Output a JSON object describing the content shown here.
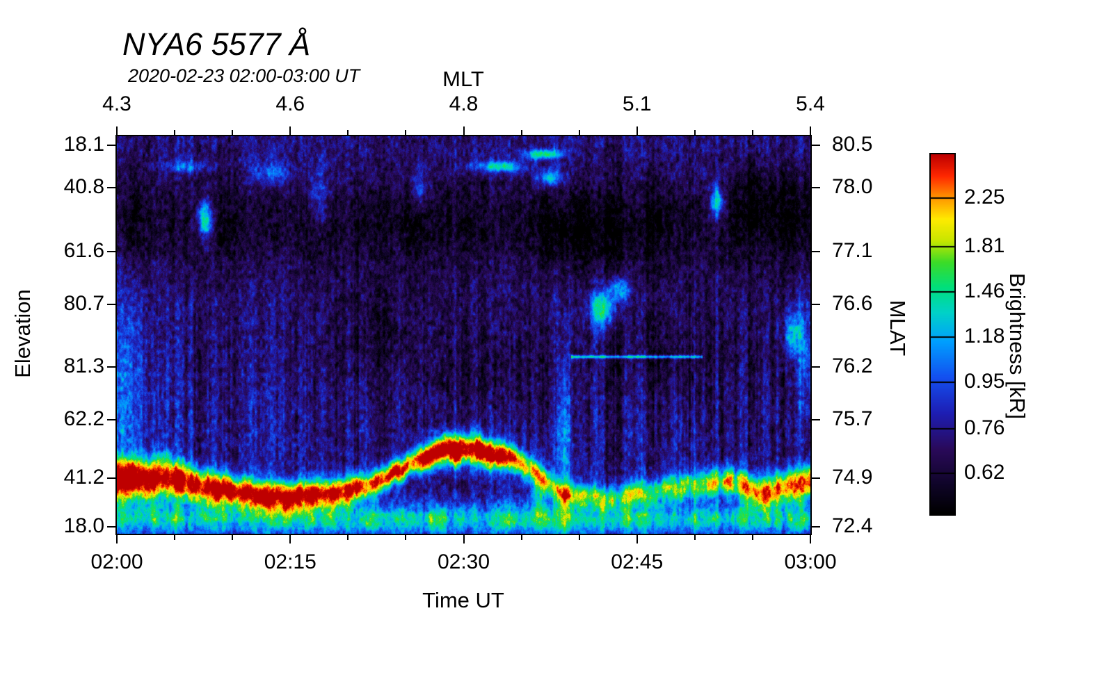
{
  "chart_data": {
    "type": "heatmap",
    "title": "NYA6 5577 Å",
    "subtitle": "2020-02-23 02:00-03:00 UT",
    "bottom_axis": {
      "label": "Time UT",
      "ticks": [
        {
          "label": "02:00",
          "pos": 0.0
        },
        {
          "label": "02:15",
          "pos": 0.25
        },
        {
          "label": "02:30",
          "pos": 0.5
        },
        {
          "label": "02:45",
          "pos": 0.75
        },
        {
          "label": "03:00",
          "pos": 1.0
        }
      ]
    },
    "top_axis": {
      "label": "MLT",
      "ticks": [
        {
          "label": "4.3",
          "pos": 0.0
        },
        {
          "label": "4.6",
          "pos": 0.25
        },
        {
          "label": "4.8",
          "pos": 0.5
        },
        {
          "label": "5.1",
          "pos": 0.75
        },
        {
          "label": "5.4",
          "pos": 1.0
        }
      ]
    },
    "left_axis": {
      "label": "Elevation",
      "ticks": [
        {
          "label": "18.1",
          "pos": 0.023
        },
        {
          "label": "40.8",
          "pos": 0.129
        },
        {
          "label": "61.6",
          "pos": 0.29
        },
        {
          "label": "80.7",
          "pos": 0.423
        },
        {
          "label": "81.3",
          "pos": 0.58
        },
        {
          "label": "62.2",
          "pos": 0.713
        },
        {
          "label": "41.2",
          "pos": 0.86
        },
        {
          "label": "18.0",
          "pos": 0.982
        }
      ]
    },
    "right_axis": {
      "label": "MLAT",
      "ticks": [
        {
          "label": "80.5",
          "pos": 0.023
        },
        {
          "label": "78.0",
          "pos": 0.129
        },
        {
          "label": "77.1",
          "pos": 0.29
        },
        {
          "label": "76.6",
          "pos": 0.423
        },
        {
          "label": "76.2",
          "pos": 0.58
        },
        {
          "label": "75.7",
          "pos": 0.713
        },
        {
          "label": "74.9",
          "pos": 0.86
        },
        {
          "label": "72.4",
          "pos": 0.982
        }
      ]
    },
    "colorbar": {
      "label": "Brightness [kR]",
      "ticks": [
        {
          "label": "2.25",
          "pos": 0.122
        },
        {
          "label": "1.81",
          "pos": 0.257
        },
        {
          "label": "1.46",
          "pos": 0.382
        },
        {
          "label": "1.18",
          "pos": 0.508
        },
        {
          "label": "0.95",
          "pos": 0.633
        },
        {
          "label": "0.76",
          "pos": 0.762
        },
        {
          "label": "0.62",
          "pos": 0.886
        }
      ],
      "gradient": [
        [
          0.0,
          "#000000"
        ],
        [
          0.08,
          "#0f0528"
        ],
        [
          0.18,
          "#2a0a5a"
        ],
        [
          0.28,
          "#1e1eb4"
        ],
        [
          0.38,
          "#1450f0"
        ],
        [
          0.48,
          "#00a0ff"
        ],
        [
          0.56,
          "#00d2c8"
        ],
        [
          0.63,
          "#00e07d"
        ],
        [
          0.7,
          "#3cdc28"
        ],
        [
          0.76,
          "#c8e600"
        ],
        [
          0.82,
          "#ffeb00"
        ],
        [
          0.88,
          "#ff9600"
        ],
        [
          0.94,
          "#ff2800"
        ],
        [
          1.0,
          "#be0000"
        ]
      ]
    },
    "features": {
      "band": {
        "u": [
          0.0,
          0.06,
          0.12,
          0.18,
          0.24,
          0.3,
          0.36,
          0.42,
          0.47,
          0.52,
          0.57,
          0.6,
          0.64,
          0.7,
          0.76,
          0.82,
          0.88,
          0.94,
          1.0
        ],
        "w": [
          0.862,
          0.862,
          0.878,
          0.896,
          0.91,
          0.9,
          0.88,
          0.83,
          0.79,
          0.79,
          0.808,
          0.84,
          0.9,
          0.91,
          0.9,
          0.88,
          0.87,
          0.898,
          0.872
        ],
        "amp": [
          0.88,
          0.88,
          0.8,
          0.78,
          0.8,
          0.82,
          0.78,
          0.72,
          0.88,
          0.88,
          0.78,
          0.55,
          0.48,
          0.45,
          0.45,
          0.48,
          0.55,
          0.65,
          0.62
        ],
        "sigma": [
          0.05,
          0.052,
          0.042,
          0.038,
          0.036,
          0.036,
          0.032,
          0.03,
          0.036,
          0.038,
          0.032,
          0.03,
          0.03,
          0.03,
          0.032,
          0.034,
          0.036,
          0.04,
          0.042
        ]
      },
      "dark_band": {
        "w": 0.22,
        "sigma": 0.13,
        "amp": 0.15
      },
      "bottom_band": {
        "w": 0.965,
        "sigma": 0.04,
        "amp": 0.36
      },
      "thin_line": {
        "w": 0.555,
        "u0": 0.655,
        "u1": 0.845,
        "amp": 0.42,
        "sigma": 0.004
      },
      "blobs": [
        [
          0.127,
          0.21,
          0.012,
          0.05,
          0.5
        ],
        [
          0.1,
          0.075,
          0.03,
          0.018,
          0.25
        ],
        [
          0.22,
          0.09,
          0.03,
          0.03,
          0.22
        ],
        [
          0.29,
          0.15,
          0.015,
          0.08,
          0.2
        ],
        [
          0.435,
          0.13,
          0.012,
          0.05,
          0.22
        ],
        [
          0.55,
          0.075,
          0.04,
          0.014,
          0.4
        ],
        [
          0.615,
          0.045,
          0.028,
          0.013,
          0.48
        ],
        [
          0.625,
          0.105,
          0.02,
          0.02,
          0.35
        ],
        [
          0.7,
          0.435,
          0.018,
          0.045,
          0.52
        ],
        [
          0.725,
          0.385,
          0.013,
          0.03,
          0.42
        ],
        [
          0.865,
          0.165,
          0.01,
          0.045,
          0.48
        ],
        [
          0.975,
          0.5,
          0.014,
          0.06,
          0.38
        ],
        [
          0.61,
          0.9,
          0.012,
          0.09,
          0.3
        ],
        [
          0.645,
          0.78,
          0.008,
          0.22,
          0.28
        ],
        [
          0.015,
          0.62,
          0.03,
          0.25,
          0.2
        ],
        [
          0.995,
          0.55,
          0.012,
          0.15,
          0.22
        ],
        [
          0.66,
          0.25,
          0.06,
          0.08,
          -0.1
        ],
        [
          0.93,
          0.15,
          0.05,
          0.08,
          -0.09
        ],
        [
          0.37,
          0.47,
          0.05,
          0.1,
          -0.07
        ],
        [
          0.55,
          0.6,
          0.08,
          0.12,
          -0.07
        ],
        [
          0.8,
          0.55,
          0.07,
          0.12,
          -0.06
        ]
      ]
    }
  }
}
